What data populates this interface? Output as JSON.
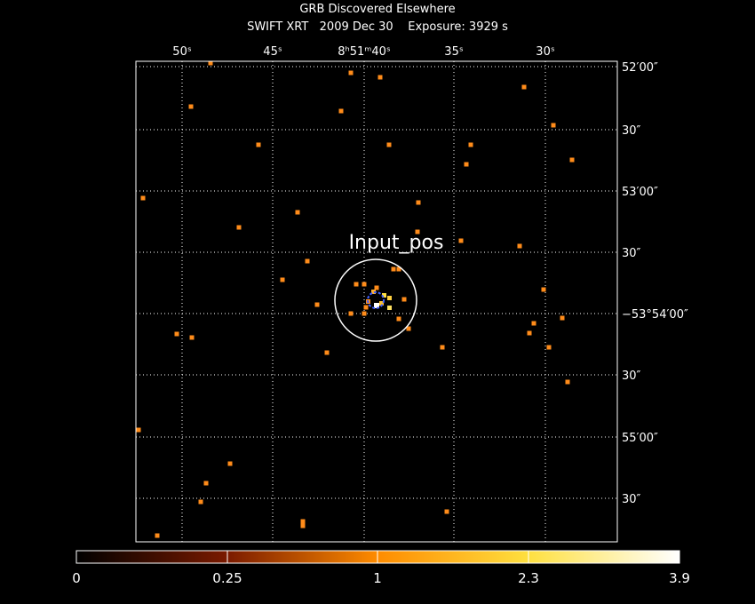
{
  "header": {
    "title": "GRB Discovered Elsewhere",
    "subtitle": "SWIFT XRT   2009 Dec 30    Exposure: 3929 s"
  },
  "axes": {
    "top": [
      "50ˢ",
      "45ˢ",
      "8ʰ51ᵐ40ˢ",
      "35ˢ",
      "30ˢ"
    ],
    "right": [
      "52′00″",
      "30″",
      "53′00″",
      "30″",
      "−53°54′00″",
      "30″",
      "55′00″",
      "30″"
    ]
  },
  "annotation": "Input_pos",
  "colorbar": {
    "labels": [
      "0",
      "0.25",
      "1",
      "2.3",
      "3.9"
    ]
  }
}
